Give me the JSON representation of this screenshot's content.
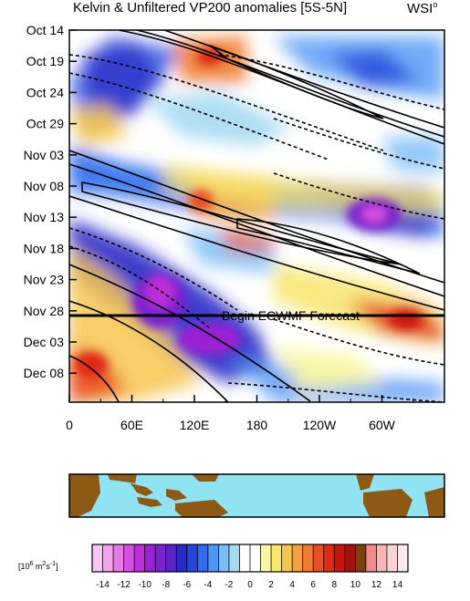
{
  "header": {
    "title": "Kelvin & Unfiltered VP200 anomalies [5S-5N]",
    "brand": "WSI",
    "brand_sup": "o"
  },
  "chart_data": {
    "type": "heatmap",
    "title": "Kelvin & Unfiltered VP200 anomalies [5S-5N]",
    "y_ticks": [
      "Oct 14",
      "Oct 19",
      "Oct 24",
      "Oct 29",
      "Nov 03",
      "Nov 08",
      "Nov 13",
      "Nov 18",
      "Nov 23",
      "Nov 28",
      "Dec 03",
      "Dec 08"
    ],
    "x_ticks": [
      "0",
      "60E",
      "120E",
      "180",
      "120W",
      "60W"
    ],
    "x_range": [
      "0",
      "360"
    ],
    "annotation": "Begin ECWMF Forecast",
    "forecast_start": "Nov 28",
    "colorbar": {
      "unit_base": "[10",
      "unit_exp": "6",
      "unit_mid": " m",
      "unit_exp2": "2",
      "unit_s": "s",
      "unit_exp3": "-1",
      "unit_end": "]",
      "labels": [
        "-14",
        "-12",
        "-10",
        "-8",
        "-6",
        "-4",
        "-2",
        "0",
        "2",
        "4",
        "6",
        "8",
        "10",
        "12",
        "14"
      ],
      "colors": [
        "#fbc7f0",
        "#f4a3ec",
        "#e87ae6",
        "#d74fe0",
        "#bf2fd9",
        "#9a22d4",
        "#7a23cf",
        "#5a23c8",
        "#2a2ac7",
        "#2546dc",
        "#2f6cf0",
        "#4f96f5",
        "#79bcf6",
        "#a6daf2",
        "#ffffff",
        "#ffffff",
        "#f9f7a3",
        "#f8e56b",
        "#f6c54d",
        "#f4a03f",
        "#f07a2f",
        "#ea4f22",
        "#df2a16",
        "#c71410",
        "#a5110c",
        "#7d3f12",
        "#f28b8b",
        "#f7b6b6",
        "#f9d4d4",
        "#fce8e8"
      ]
    },
    "map": {
      "ocean": "#8fe3f2",
      "land": "#8c5a14"
    }
  }
}
